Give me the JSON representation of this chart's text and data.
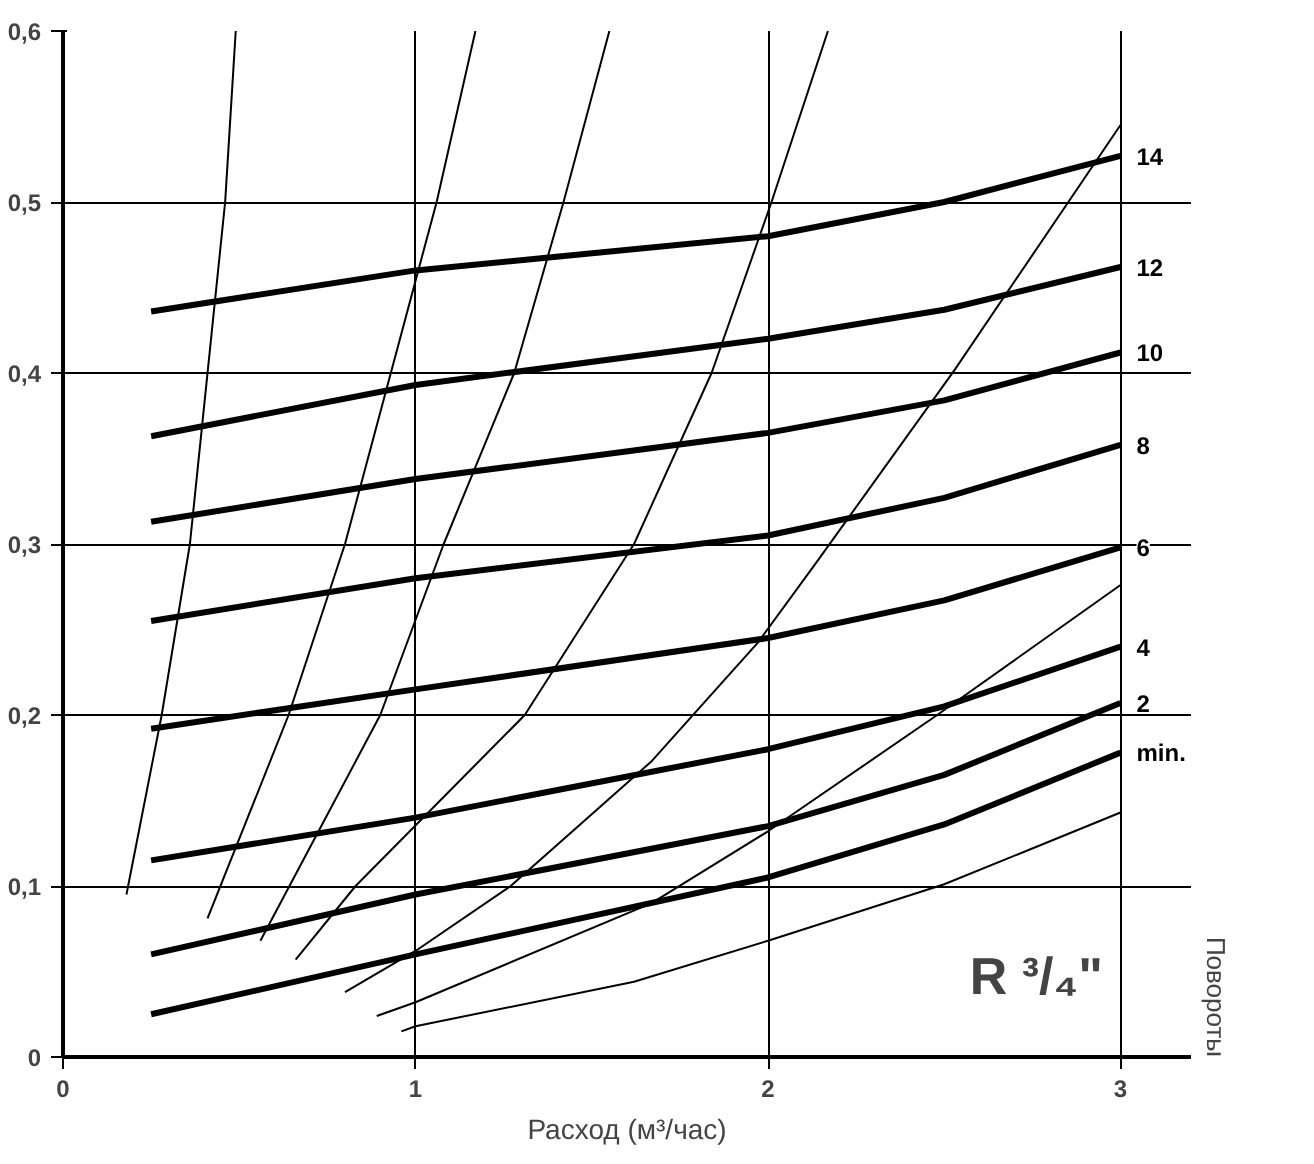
{
  "chart_data": {
    "type": "line",
    "xlabel": "Расход (м³/час)",
    "legend_title": "Повороты",
    "xlim": [
      0,
      3.2
    ],
    "ylim": [
      0,
      0.6
    ],
    "xticks": [
      0,
      1,
      2,
      3
    ],
    "yticks": [
      0,
      {
        "value": 0.1,
        "label": "0,1"
      },
      {
        "value": 0.2,
        "label": "0,2"
      },
      {
        "value": 0.3,
        "label": "0,3"
      },
      {
        "value": 0.4,
        "label": "0,4"
      },
      {
        "value": 0.5,
        "label": "0,5"
      },
      {
        "value": 0.6,
        "label": "0,6"
      }
    ],
    "grid": true,
    "legend": false,
    "marker": "none",
    "line_style": "solid",
    "annotations": [
      "R ³/₄\""
    ],
    "series": [
      {
        "name": "14",
        "color": "#000000",
        "x": [
          0.25,
          1,
          2,
          2.5,
          3
        ],
        "values": [
          0.436,
          0.46,
          0.48,
          0.5,
          0.527
        ]
      },
      {
        "name": "12",
        "color": "#000000",
        "x": [
          0.25,
          1,
          2,
          2.5,
          3
        ],
        "values": [
          0.363,
          0.393,
          0.42,
          0.437,
          0.462
        ]
      },
      {
        "name": "10",
        "color": "#000000",
        "x": [
          0.25,
          1,
          2,
          2.5,
          3
        ],
        "values": [
          0.313,
          0.338,
          0.365,
          0.384,
          0.412
        ]
      },
      {
        "name": "8",
        "color": "#000000",
        "x": [
          0.25,
          1,
          2,
          2.5,
          3
        ],
        "values": [
          0.255,
          0.28,
          0.305,
          0.327,
          0.358
        ]
      },
      {
        "name": "6",
        "color": "#000000",
        "x": [
          0.25,
          1,
          2,
          2.5,
          3
        ],
        "values": [
          0.192,
          0.215,
          0.245,
          0.267,
          0.298
        ]
      },
      {
        "name": "4",
        "color": "#000000",
        "x": [
          0.25,
          1,
          2,
          2.5,
          3
        ],
        "values": [
          0.115,
          0.14,
          0.18,
          0.205,
          0.24
        ]
      },
      {
        "name": "2",
        "color": "#000000",
        "x": [
          0.25,
          1,
          2,
          2.5,
          3
        ],
        "values": [
          0.06,
          0.095,
          0.135,
          0.165,
          0.207
        ]
      },
      {
        "name": "min.",
        "color": "#000000",
        "x": [
          0.25,
          1,
          2,
          2.5,
          3
        ],
        "values": [
          0.025,
          0.06,
          0.105,
          0.136,
          0.178
        ]
      },
      {
        "color": "#000000",
        "x": [
          0.18,
          0.28,
          0.36,
          0.46,
          0.49
        ],
        "values": [
          0.095,
          0.2,
          0.3,
          0.5,
          0.6
        ]
      },
      {
        "color": "#000000",
        "x": [
          0.41,
          0.64,
          0.8,
          1.06,
          1.17
        ],
        "values": [
          0.081,
          0.2,
          0.3,
          0.5,
          0.6
        ]
      },
      {
        "color": "#000000",
        "x": [
          0.56,
          0.9,
          1.08,
          1.28,
          1.42,
          1.55
        ],
        "values": [
          0.068,
          0.2,
          0.3,
          0.4,
          0.5,
          0.6
        ]
      },
      {
        "color": "#000000",
        "x": [
          0.66,
          0.83,
          1.31,
          1.62,
          1.84,
          2.01,
          2.17
        ],
        "values": [
          0.057,
          0.1,
          0.2,
          0.3,
          0.4,
          0.5,
          0.6
        ]
      },
      {
        "color": "#000000",
        "x": [
          0.8,
          1,
          1.27,
          1.67,
          1.97,
          2.14,
          2.53,
          3
        ],
        "values": [
          0.038,
          0.062,
          0.1,
          0.173,
          0.242,
          0.29,
          0.402,
          0.545
        ]
      },
      {
        "color": "#000000",
        "x": [
          0.89,
          1,
          1.67,
          2,
          2.48,
          3
        ],
        "values": [
          0.024,
          0.032,
          0.09,
          0.132,
          0.2,
          0.276
        ]
      },
      {
        "color": "#000000",
        "x": [
          0.96,
          1,
          1.62,
          2,
          2.5,
          3
        ],
        "values": [
          0.015,
          0.018,
          0.044,
          0.068,
          0.101,
          0.143
        ]
      }
    ]
  }
}
